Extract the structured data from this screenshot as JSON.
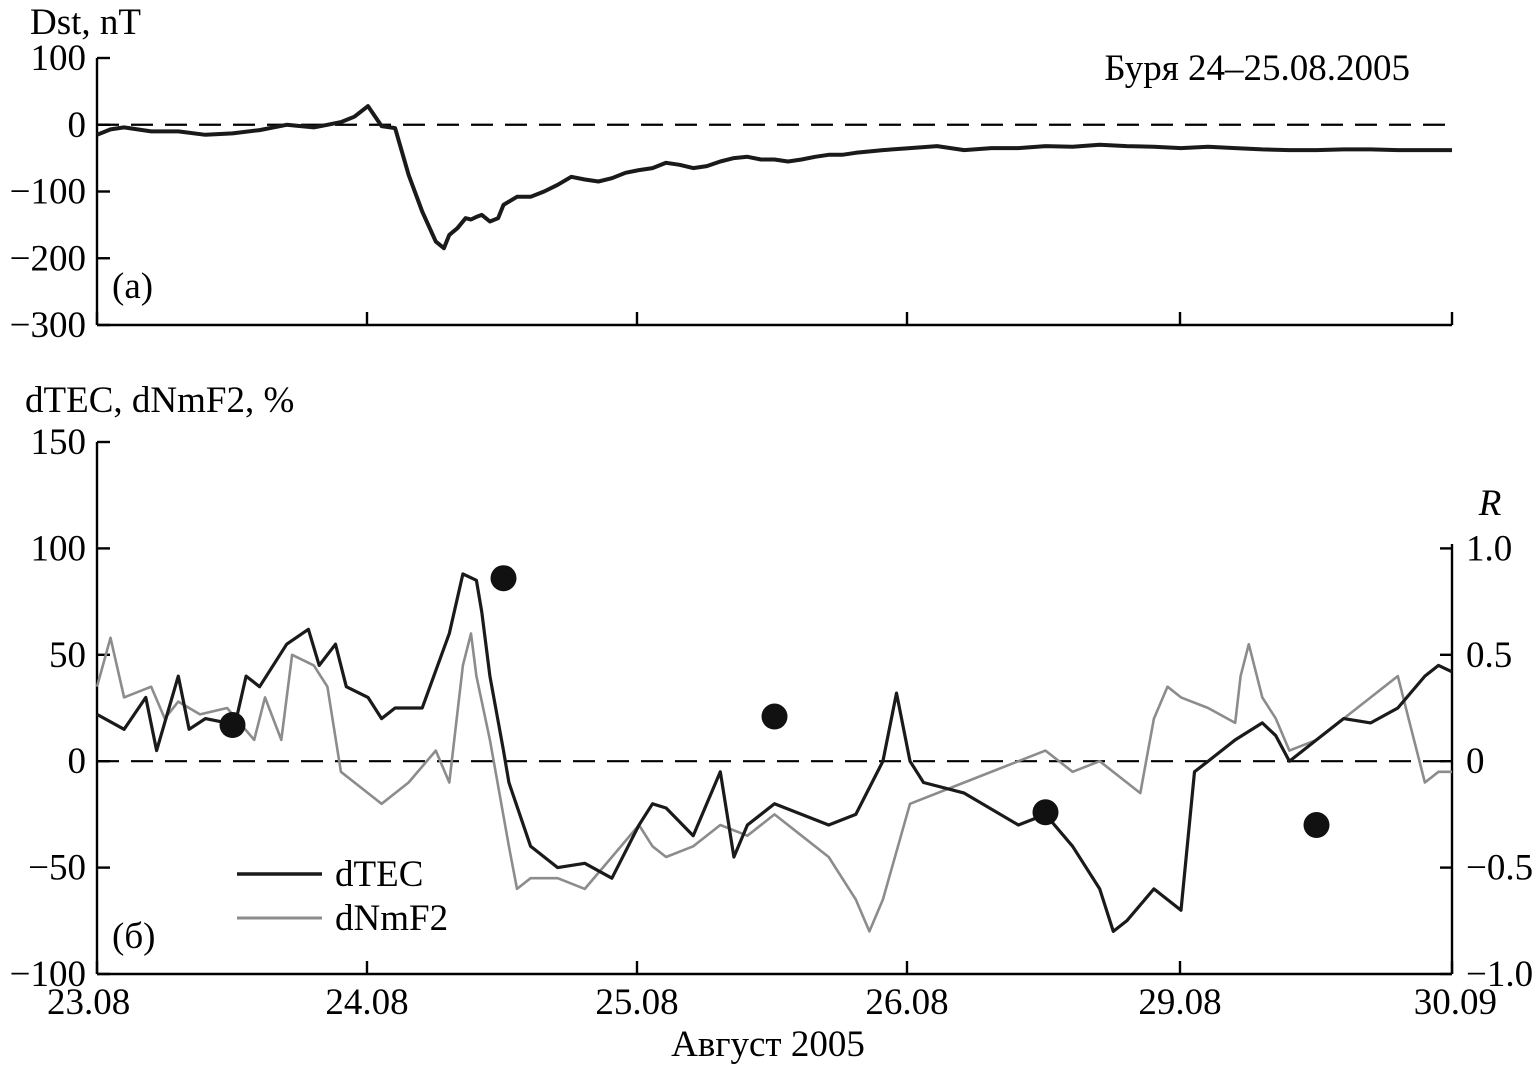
{
  "chart_data": [
    {
      "type": "line",
      "panel_label": "(a)",
      "ylabel": "Dst, nT",
      "annotation": "Буря 24–25.08.2005",
      "ylim": [
        -300,
        100
      ],
      "yticks": [
        "100",
        "0",
        "−100",
        "−200",
        "−300"
      ],
      "reference_line": 0,
      "series": [
        {
          "values_x_units": "day index (0 = 23.08 … 5 = 30.09)",
          "x": [
            0,
            0.05,
            0.1,
            0.2,
            0.3,
            0.4,
            0.5,
            0.6,
            0.7,
            0.8,
            0.85,
            0.9,
            0.95,
            1.0,
            1.05,
            1.1,
            1.15,
            1.2,
            1.25,
            1.28,
            1.3,
            1.33,
            1.36,
            1.38,
            1.4,
            1.42,
            1.45,
            1.48,
            1.5,
            1.55,
            1.6,
            1.65,
            1.7,
            1.75,
            1.8,
            1.85,
            1.9,
            1.95,
            2.0,
            2.05,
            2.1,
            2.15,
            2.2,
            2.25,
            2.3,
            2.35,
            2.4,
            2.45,
            2.5,
            2.55,
            2.6,
            2.65,
            2.7,
            2.75,
            2.8,
            2.9,
            3.0,
            3.1,
            3.2,
            3.3,
            3.4,
            3.5,
            3.6,
            3.7,
            3.8,
            3.9,
            4.0,
            4.1,
            4.2,
            4.3,
            4.4,
            4.5,
            4.6,
            4.7,
            4.8,
            4.9,
            5.0
          ],
          "y": [
            -15,
            -7,
            -4,
            -10,
            -10,
            -15,
            -13,
            -8,
            0,
            -4,
            0,
            4,
            12,
            28,
            -2,
            -5,
            -75,
            -130,
            -175,
            -185,
            -165,
            -155,
            -140,
            -142,
            -138,
            -135,
            -145,
            -140,
            -120,
            -108,
            -108,
            -100,
            -90,
            -78,
            -82,
            -85,
            -80,
            -72,
            -68,
            -65,
            -57,
            -60,
            -65,
            -62,
            -55,
            -50,
            -48,
            -52,
            -52,
            -55,
            -52,
            -48,
            -45,
            -45,
            -42,
            -38,
            -35,
            -32,
            -38,
            -35,
            -35,
            -32,
            -33,
            -30,
            -32,
            -33,
            -35,
            -33,
            -35,
            -37,
            -38,
            -38,
            -37,
            -37,
            -38,
            -38,
            -38
          ]
        }
      ]
    },
    {
      "type": "line",
      "panel_label": "(б)",
      "ylabel": "dTEC, dNmF2, %",
      "ylabel_right": "R",
      "xlabel": "Август 2005",
      "categories": [
        "23.08",
        "24.08",
        "25.08",
        "26.08",
        "29.08",
        "30.09"
      ],
      "ylim": [
        -100,
        150
      ],
      "yticks": [
        "150",
        "100",
        "50",
        "0",
        "−50",
        "−100"
      ],
      "ylim_right": [
        -1.0,
        1.0
      ],
      "yticks_right": [
        "1.0",
        "0.5",
        "0",
        "−0.5",
        "−1.0"
      ],
      "reference_line": 0,
      "legend": {
        "placement": "bottom-left",
        "entries": [
          "dTEC",
          "dNmF2"
        ]
      },
      "series": [
        {
          "name": "dTEC",
          "color": "#1a1a1a",
          "x": [
            0,
            0.1,
            0.18,
            0.22,
            0.3,
            0.34,
            0.4,
            0.48,
            0.5,
            0.55,
            0.6,
            0.7,
            0.78,
            0.82,
            0.88,
            0.92,
            1.0,
            1.05,
            1.1,
            1.2,
            1.3,
            1.35,
            1.4,
            1.42,
            1.45,
            1.5,
            1.52,
            1.6,
            1.7,
            1.8,
            1.9,
            2.0,
            2.05,
            2.1,
            2.2,
            2.3,
            2.35,
            2.4,
            2.5,
            2.6,
            2.7,
            2.8,
            2.9,
            2.95,
            3.0,
            3.05,
            3.2,
            3.4,
            3.5,
            3.6,
            3.7,
            3.75,
            3.8,
            3.9,
            4.0,
            4.05,
            4.1,
            4.2,
            4.3,
            4.35,
            4.4,
            4.5,
            4.6,
            4.7,
            4.8,
            4.9,
            4.95,
            5.0
          ],
          "y": [
            22,
            15,
            30,
            5,
            40,
            15,
            20,
            18,
            12,
            40,
            35,
            55,
            62,
            45,
            55,
            35,
            30,
            20,
            25,
            25,
            60,
            88,
            85,
            70,
            40,
            5,
            -10,
            -40,
            -50,
            -48,
            -55,
            -30,
            -20,
            -22,
            -35,
            -5,
            -45,
            -30,
            -20,
            -25,
            -30,
            -25,
            0,
            32,
            0,
            -10,
            -15,
            -30,
            -25,
            -40,
            -60,
            -80,
            -75,
            -60,
            -70,
            -5,
            0,
            10,
            18,
            12,
            0,
            10,
            20,
            18,
            25,
            40,
            45,
            42
          ]
        },
        {
          "name": "dNmF2",
          "color": "#8c8c8c",
          "x": [
            0,
            0.05,
            0.1,
            0.2,
            0.25,
            0.3,
            0.38,
            0.48,
            0.58,
            0.62,
            0.68,
            0.72,
            0.8,
            0.85,
            0.9,
            1.0,
            1.05,
            1.15,
            1.25,
            1.3,
            1.35,
            1.38,
            1.4,
            1.45,
            1.52,
            1.55,
            1.6,
            1.7,
            1.8,
            1.9,
            2.0,
            2.05,
            2.1,
            2.2,
            2.3,
            2.4,
            2.5,
            2.6,
            2.7,
            2.8,
            2.85,
            2.9,
            3.0,
            3.2,
            3.4,
            3.5,
            3.6,
            3.7,
            3.8,
            3.85,
            3.9,
            3.95,
            4.0,
            4.1,
            4.2,
            4.22,
            4.25,
            4.3,
            4.35,
            4.4,
            4.5,
            4.6,
            4.7,
            4.75,
            4.8,
            4.85,
            4.9,
            4.95,
            5.0
          ],
          "y": [
            35,
            58,
            30,
            35,
            20,
            28,
            22,
            25,
            10,
            30,
            10,
            50,
            45,
            35,
            -5,
            -15,
            -20,
            -10,
            5,
            -10,
            45,
            60,
            40,
            10,
            -40,
            -60,
            -55,
            -55,
            -60,
            -45,
            -30,
            -40,
            -45,
            -40,
            -30,
            -35,
            -25,
            -35,
            -45,
            -65,
            -80,
            -65,
            -20,
            -10,
            0,
            5,
            -5,
            0,
            -10,
            -15,
            20,
            35,
            30,
            25,
            18,
            40,
            55,
            30,
            20,
            5,
            10,
            20,
            30,
            35,
            40,
            15,
            -10,
            -5,
            -5
          ]
        },
        {
          "name": "R",
          "axis": "right",
          "style": "markers",
          "x": [
            0.5,
            1.5,
            2.5,
            3.5,
            4.5
          ],
          "y": [
            0.17,
            0.86,
            0.21,
            -0.24,
            -0.3
          ]
        }
      ]
    }
  ]
}
